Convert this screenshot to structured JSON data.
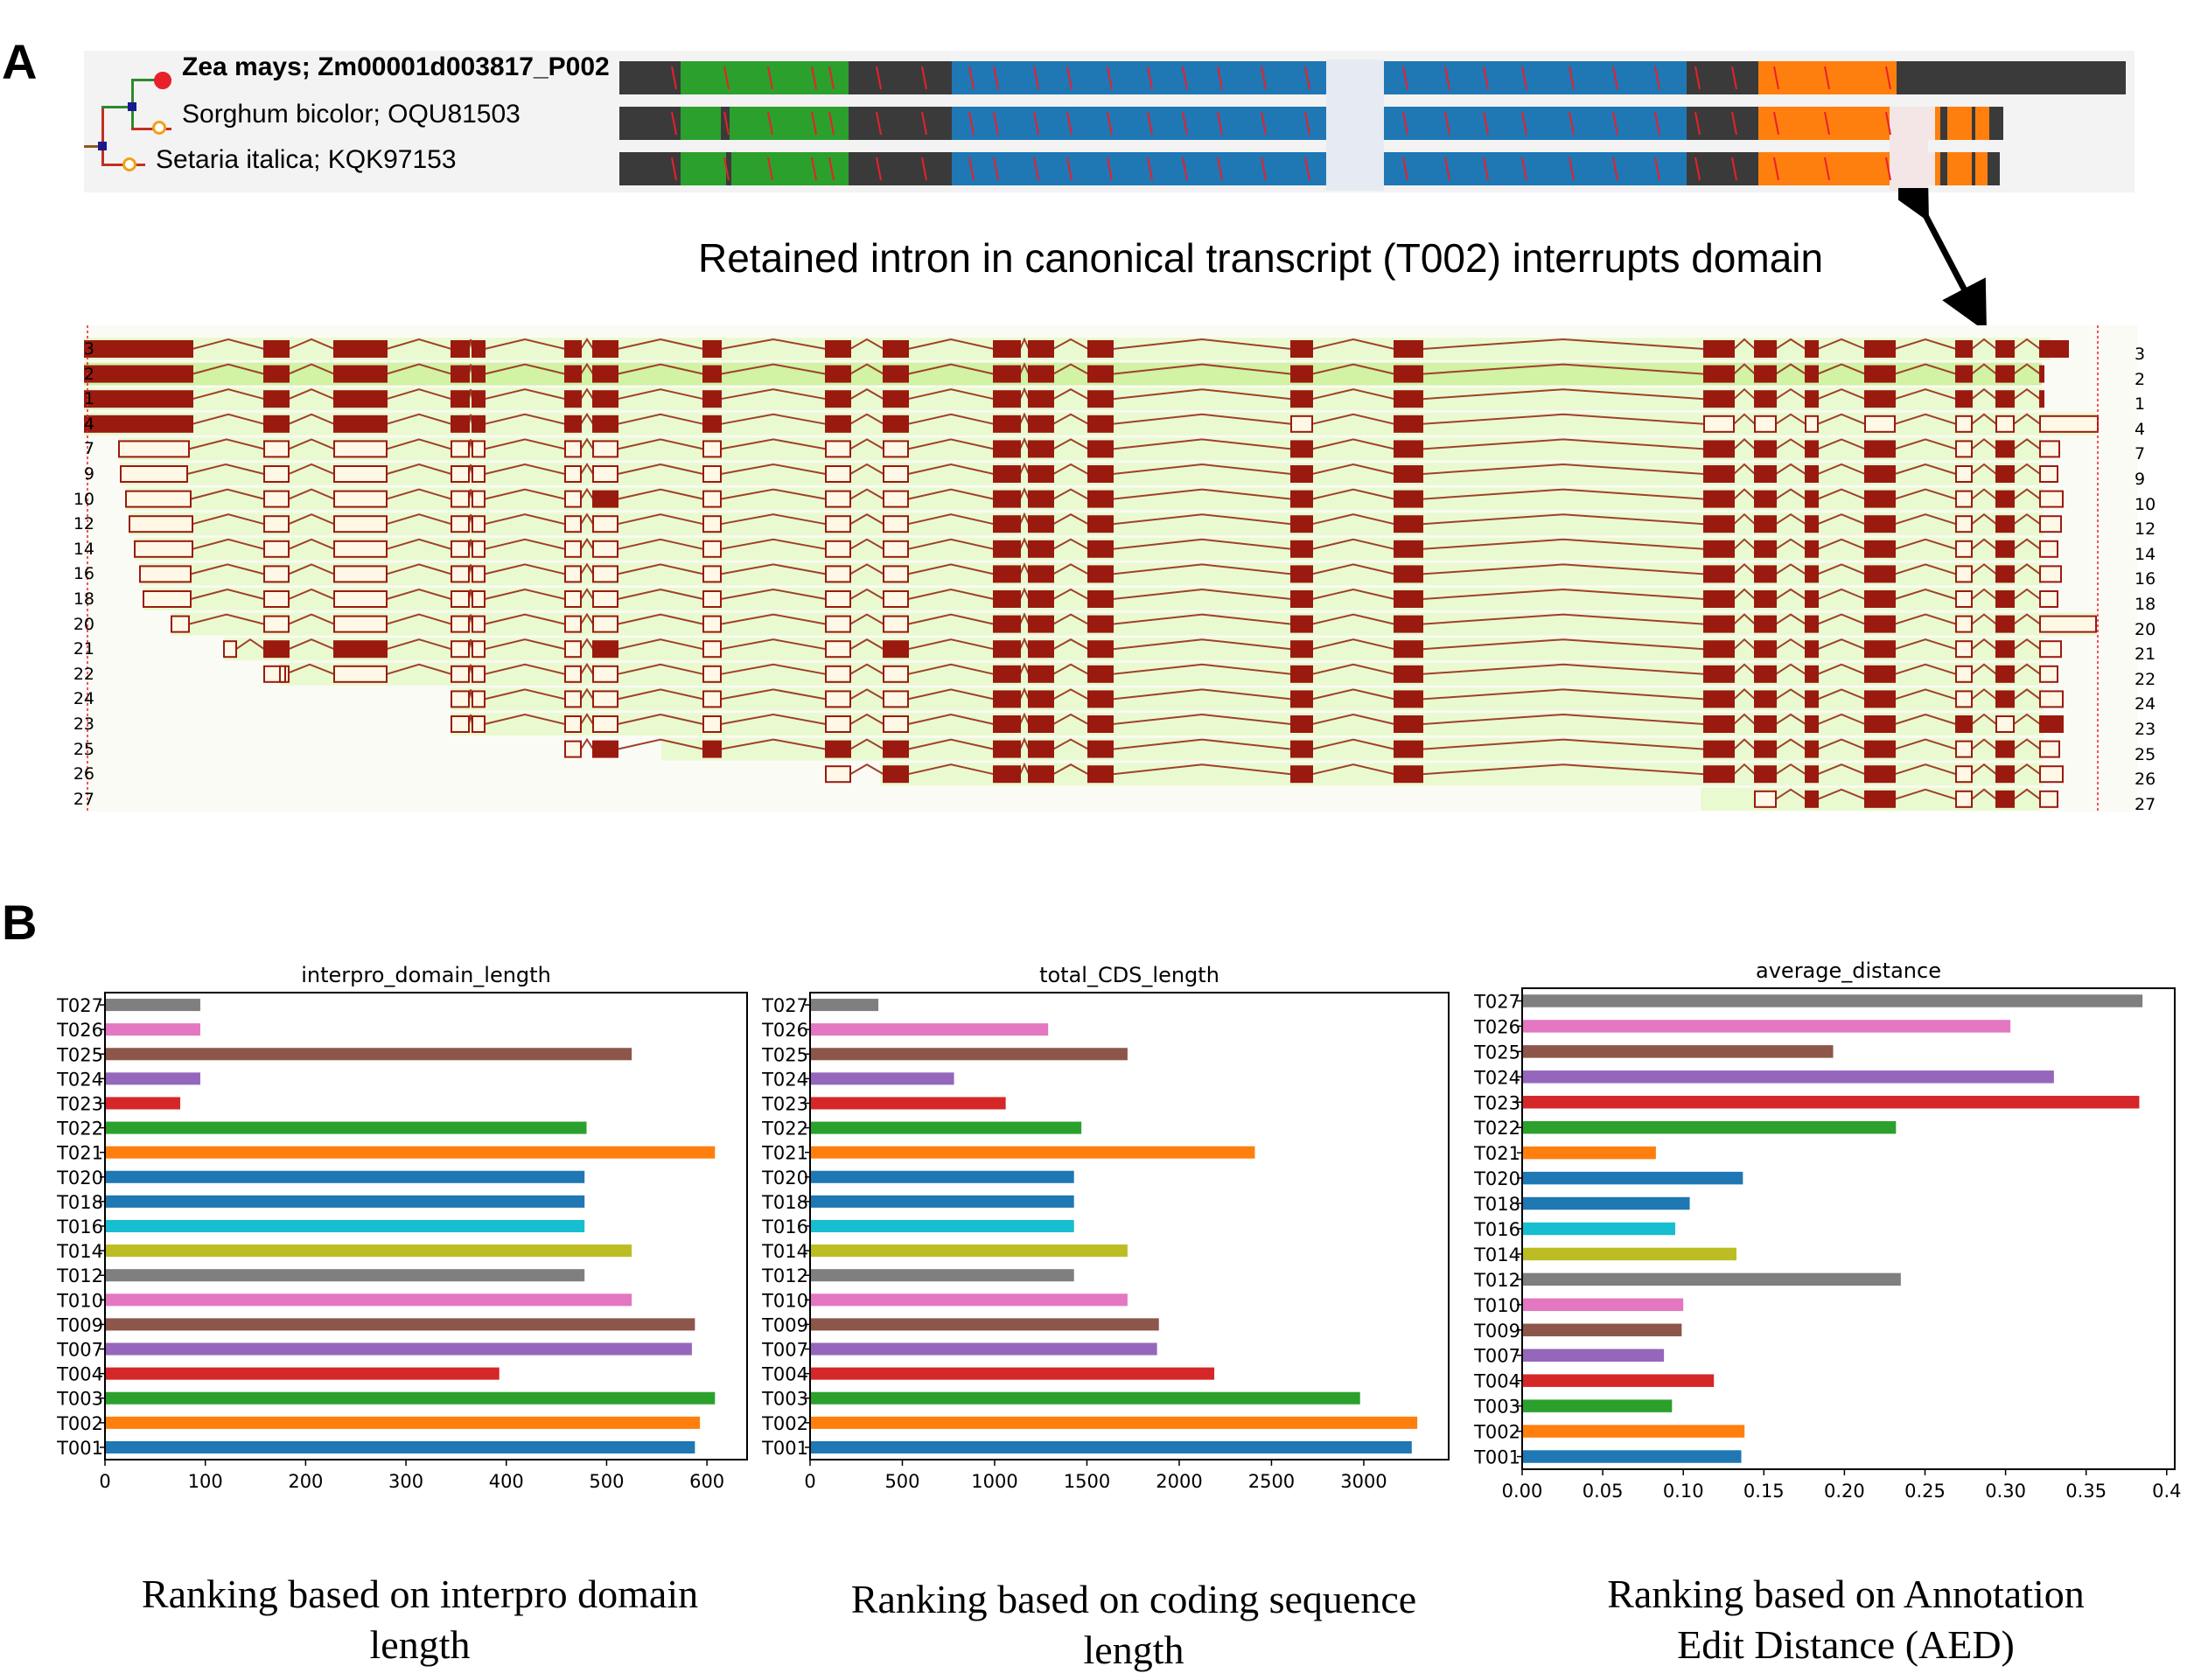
{
  "panel_labels": {
    "a": "A",
    "b": "B"
  },
  "domain_panel": {
    "species": [
      {
        "name": "Zea mays; Zm00001d003817_P002",
        "bold": true,
        "marker": "filled"
      },
      {
        "name": "Sorghum bicolor; OQU81503",
        "bold": false,
        "marker": "open"
      },
      {
        "name": "Setaria italica; KQK97153",
        "bold": false,
        "marker": "open"
      }
    ],
    "colors": {
      "backbone": "#3a3a3a",
      "green": "#2ca02c",
      "blue": "#1f77b4",
      "orange": "#ff7f0e",
      "tick": "#e8202b"
    },
    "annotation": "Retained intron in canonical transcript (T002) interrupts domain"
  },
  "transcript_panel": {
    "row_labels": [
      "3",
      "2",
      "1",
      "4",
      "7",
      "9",
      "10",
      "12",
      "14",
      "16",
      "18",
      "20",
      "21",
      "22",
      "24",
      "23",
      "25",
      "26",
      "27"
    ],
    "colors": {
      "exon_coding": "#9a1a0f",
      "exon_utr_fill": "#fff8e6",
      "track_bg": "#eafad0",
      "highlight": "#d2f2a4"
    }
  },
  "chart_data": [
    {
      "type": "bar",
      "orientation": "horizontal",
      "title": "interpro_domain_length",
      "categories": [
        "T027",
        "T026",
        "T025",
        "T024",
        "T023",
        "T022",
        "T021",
        "T020",
        "T018",
        "T016",
        "T014",
        "T012",
        "T010",
        "T009",
        "T007",
        "T004",
        "T003",
        "T002",
        "T001"
      ],
      "values": [
        95,
        95,
        525,
        95,
        75,
        480,
        608,
        478,
        478,
        478,
        525,
        478,
        525,
        588,
        585,
        393,
        608,
        593,
        588
      ],
      "colors": [
        "#7f7f7f",
        "#e377c2",
        "#8c564b",
        "#9467bd",
        "#d62728",
        "#2ca02c",
        "#ff7f0e",
        "#1f77b4",
        "#1f77b4",
        "#17becf",
        "#bcbd22",
        "#7f7f7f",
        "#e377c2",
        "#8c564b",
        "#9467bd",
        "#d62728",
        "#2ca02c",
        "#ff7f0e",
        "#1f77b4"
      ],
      "xlim": [
        0,
        640
      ],
      "xticks": [
        "0",
        "100",
        "200",
        "300",
        "400",
        "500",
        "600"
      ],
      "xtick_values": [
        0,
        100,
        200,
        300,
        400,
        500,
        600
      ],
      "caption": [
        "Ranking based on interpro domain",
        "length"
      ]
    },
    {
      "type": "bar",
      "orientation": "horizontal",
      "title": "total_CDS_length",
      "categories": [
        "T027",
        "T026",
        "T025",
        "T024",
        "T023",
        "T022",
        "T021",
        "T020",
        "T018",
        "T016",
        "T014",
        "T012",
        "T010",
        "T009",
        "T007",
        "T004",
        "T003",
        "T002",
        "T001"
      ],
      "values": [
        370,
        1290,
        1720,
        780,
        1060,
        1470,
        2410,
        1430,
        1430,
        1430,
        1720,
        1430,
        1720,
        1890,
        1880,
        2190,
        2980,
        3290,
        3260
      ],
      "colors": [
        "#7f7f7f",
        "#e377c2",
        "#8c564b",
        "#9467bd",
        "#d62728",
        "#2ca02c",
        "#ff7f0e",
        "#1f77b4",
        "#1f77b4",
        "#17becf",
        "#bcbd22",
        "#7f7f7f",
        "#e377c2",
        "#8c564b",
        "#9467bd",
        "#d62728",
        "#2ca02c",
        "#ff7f0e",
        "#1f77b4"
      ],
      "xlim": [
        0,
        3460
      ],
      "xticks": [
        "0",
        "500",
        "1000",
        "1500",
        "2000",
        "2500",
        "3000"
      ],
      "xtick_values": [
        0,
        500,
        1000,
        1500,
        2000,
        2500,
        3000
      ],
      "caption": [
        "Ranking based on coding sequence",
        "length"
      ]
    },
    {
      "type": "bar",
      "orientation": "horizontal",
      "title": "average_distance",
      "categories": [
        "T027",
        "T026",
        "T025",
        "T024",
        "T023",
        "T022",
        "T021",
        "T020",
        "T018",
        "T016",
        "T014",
        "T012",
        "T010",
        "T009",
        "T007",
        "T004",
        "T003",
        "T002",
        "T001"
      ],
      "values": [
        0.385,
        0.303,
        0.193,
        0.33,
        0.383,
        0.232,
        0.083,
        0.137,
        0.104,
        0.095,
        0.133,
        0.235,
        0.1,
        0.099,
        0.088,
        0.119,
        0.093,
        0.138,
        0.136
      ],
      "colors": [
        "#7f7f7f",
        "#e377c2",
        "#8c564b",
        "#9467bd",
        "#d62728",
        "#2ca02c",
        "#ff7f0e",
        "#1f77b4",
        "#1f77b4",
        "#17becf",
        "#bcbd22",
        "#7f7f7f",
        "#e377c2",
        "#8c564b",
        "#9467bd",
        "#d62728",
        "#2ca02c",
        "#ff7f0e",
        "#1f77b4"
      ],
      "xlim": [
        0,
        0.405
      ],
      "xticks": [
        "0.00",
        "0.05",
        "0.10",
        "0.15",
        "0.20",
        "0.25",
        "0.30",
        "0.35",
        "0.4"
      ],
      "xtick_values": [
        0,
        0.05,
        0.1,
        0.15,
        0.2,
        0.25,
        0.3,
        0.35,
        0.4
      ],
      "caption": [
        "Ranking based on Annotation",
        "Edit Distance (AED)"
      ]
    }
  ]
}
